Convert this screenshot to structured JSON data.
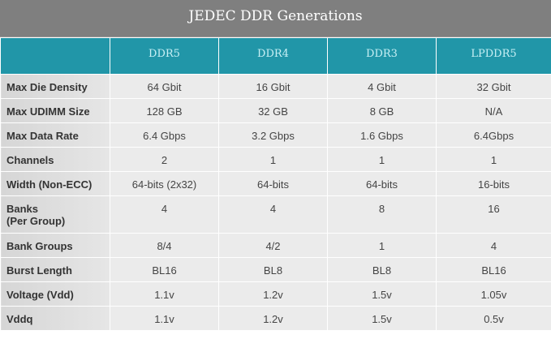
{
  "title": "JEDEC DDR Generations",
  "columns": [
    "",
    "DDR5",
    "DDR4",
    "DDR3",
    "LPDDR5"
  ],
  "rows": [
    {
      "label": "Max Die Density",
      "values": [
        "64 Gbit",
        "16 Gbit",
        "4 Gbit",
        "32 Gbit"
      ]
    },
    {
      "label": "Max UDIMM Size",
      "values": [
        "128 GB",
        "32 GB",
        "8 GB",
        "N/A"
      ]
    },
    {
      "label": "Max Data Rate",
      "values": [
        "6.4 Gbps",
        "3.2 Gbps",
        "1.6 Gbps",
        "6.4Gbps"
      ]
    },
    {
      "label": "Channels",
      "values": [
        "2",
        "1",
        "1",
        "1"
      ]
    },
    {
      "label": "Width (Non-ECC)",
      "values": [
        "64-bits (2x32)",
        "64-bits",
        "64-bits",
        "16-bits"
      ]
    },
    {
      "label": "Banks",
      "label2": "(Per Group)",
      "values": [
        "4",
        "4",
        "8",
        "16"
      ]
    },
    {
      "label": "Bank Groups",
      "values": [
        "8/4",
        "4/2",
        "1",
        "4"
      ]
    },
    {
      "label": "Burst Length",
      "values": [
        "BL16",
        "BL8",
        "BL8",
        "BL16"
      ]
    },
    {
      "label": "Voltage (Vdd)",
      "values": [
        "1.1v",
        "1.2v",
        "1.5v",
        "1.05v"
      ]
    },
    {
      "label": "Vddq",
      "values": [
        "1.1v",
        "1.2v",
        "1.5v",
        "0.5v"
      ]
    }
  ]
}
